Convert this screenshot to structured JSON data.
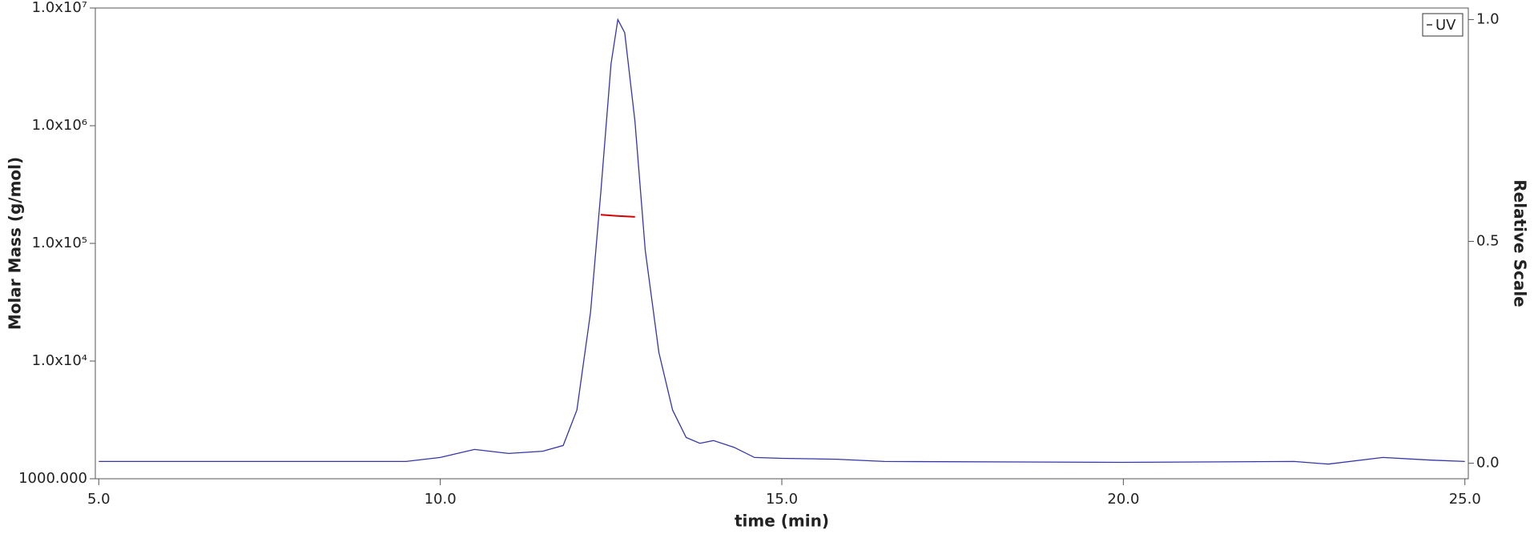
{
  "chart_data": {
    "type": "line",
    "x_label": "time (min)",
    "y_label": "Molar Mass (g/mol)",
    "y2_label": "Relative Scale",
    "log_y": true,
    "legend": "top-right",
    "xlim": [
      4.95,
      25.05
    ],
    "xticks": [
      {
        "value": 5,
        "label": "5.0"
      },
      {
        "value": 10,
        "label": "10.0"
      },
      {
        "value": 15,
        "label": "15.0"
      },
      {
        "value": 20,
        "label": "20.0"
      },
      {
        "value": 25,
        "label": "25.0"
      }
    ],
    "ylim": [
      1000,
      10000000
    ],
    "yticks": [
      {
        "value": 1000,
        "label": "1000.000"
      },
      {
        "value": 10000,
        "label": "1.0x10⁴"
      },
      {
        "value": 100000,
        "label": "1.0x10⁵"
      },
      {
        "value": 1000000,
        "label": "1.0x10⁶"
      },
      {
        "value": 10000000,
        "label": "1.0x10⁷"
      }
    ],
    "y2lim": [
      -0.035,
      1.026
    ],
    "y2ticks": [
      {
        "value": 0,
        "label": "0.0"
      },
      {
        "value": 0.5,
        "label": "0.5"
      },
      {
        "value": 1,
        "label": "1.0"
      }
    ],
    "series": [
      {
        "name": "UV",
        "color": "#3535a8",
        "axis": "y2",
        "x": [
          5,
          7,
          9.5,
          10,
          10.5,
          11,
          11.5,
          11.8,
          12,
          12.2,
          12.35,
          12.5,
          12.6,
          12.7,
          12.85,
          13,
          13.2,
          13.4,
          13.6,
          13.8,
          14,
          14.3,
          14.6,
          15,
          15.8,
          16.5,
          20,
          22.5,
          23,
          23.8,
          24.5,
          25
        ],
        "values": [
          0.004,
          0.004,
          0.004,
          0.013,
          0.031,
          0.022,
          0.027,
          0.04,
          0.12,
          0.34,
          0.61,
          0.9,
          1.0,
          0.97,
          0.77,
          0.48,
          0.25,
          0.12,
          0.058,
          0.045,
          0.051,
          0.036,
          0.013,
          0.011,
          0.009,
          0.004,
          0.002,
          0.004,
          -0.002,
          0.013,
          0.007,
          0.004
        ]
      },
      {
        "color": "#d40000",
        "x": [
          12.35,
          12.6,
          12.85
        ],
        "values": [
          175000,
          171000,
          168000
        ]
      }
    ]
  }
}
